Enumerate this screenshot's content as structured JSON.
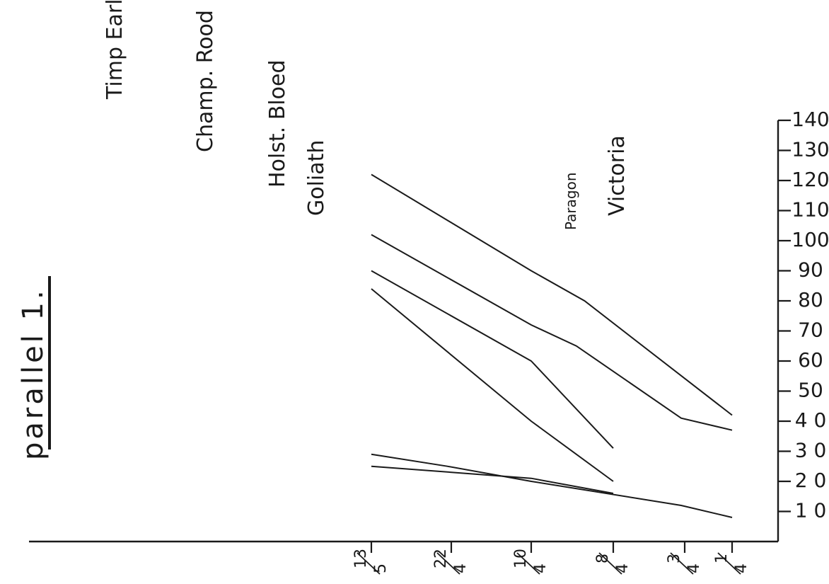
{
  "chart_data": {
    "type": "line",
    "title": "parallel 1.",
    "x_ticks": [
      "1/4",
      "3/4",
      "8/4",
      "10/4",
      "22/4",
      "13/5"
    ],
    "x_ticks_display": [
      [
        "1",
        "4"
      ],
      [
        "3",
        "4"
      ],
      [
        "8",
        "4"
      ],
      [
        "10",
        "4"
      ],
      [
        "22",
        "4"
      ],
      [
        "13",
        "5"
      ]
    ],
    "y_ticks": [
      10,
      20,
      30,
      40,
      50,
      60,
      70,
      80,
      90,
      100,
      110,
      120,
      130,
      140
    ],
    "y_tick_labels": [
      "1 0",
      "2 0",
      "3 0",
      "4 0",
      "50",
      "60",
      "70",
      "80",
      "90",
      "100",
      "110",
      "120",
      "130",
      "140"
    ],
    "ylim": [
      0,
      140
    ],
    "grid": false,
    "legend": "labels at line ends",
    "series": [
      {
        "name": "Timp Early",
        "points": [
          [
            0,
            42
          ],
          [
            2.35,
            80
          ],
          [
            3,
            90
          ],
          [
            5.65,
            122
          ]
        ]
      },
      {
        "name": "Champ. Rood",
        "points": [
          [
            0,
            37
          ],
          [
            1.05,
            41
          ],
          [
            2.45,
            65
          ],
          [
            3.0,
            72
          ],
          [
            5.55,
            102
          ]
        ]
      },
      {
        "name": "Holst. Bloed",
        "points": [
          [
            2.0,
            31
          ],
          [
            3.0,
            60
          ],
          [
            5.4,
            90
          ]
        ]
      },
      {
        "name": "Goliath",
        "points": [
          [
            2.0,
            20
          ],
          [
            3.0,
            40
          ],
          [
            5.35,
            84
          ]
        ]
      },
      {
        "name": "Paragon",
        "points": [
          [
            0,
            8
          ],
          [
            1.05,
            12
          ],
          [
            3.0,
            20
          ],
          [
            4.05,
            25
          ],
          [
            5.1,
            29
          ]
        ]
      },
      {
        "name": "Victoria",
        "points": [
          [
            2.0,
            16
          ],
          [
            3.0,
            21
          ],
          [
            5.0,
            25
          ]
        ]
      }
    ]
  }
}
